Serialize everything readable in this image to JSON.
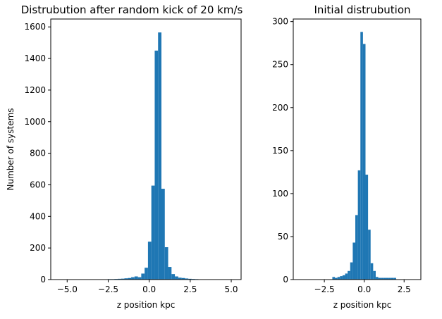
{
  "chart_data": [
    {
      "type": "bar",
      "title": "Distrubution after random kick of 20 km/s",
      "xlabel": "z position kpc",
      "ylabel": "Number of systems",
      "xlim": [
        -6.0,
        5.6
      ],
      "ylim": [
        0,
        1650
      ],
      "xticks": [
        -5.0,
        -2.5,
        0.0,
        2.5,
        5.0
      ],
      "xtick_labels": [
        "−5.0",
        "−2.5",
        "0.0",
        "2.5",
        "5.0"
      ],
      "yticks": [
        0,
        200,
        400,
        600,
        800,
        1000,
        1200,
        1400,
        1600
      ],
      "ytick_labels": [
        "0",
        "200",
        "400",
        "600",
        "800",
        "1000",
        "1200",
        "1400",
        "1600"
      ],
      "bin_start": -5.2,
      "bin_width": 0.205,
      "values": [
        2,
        1,
        1,
        1,
        1,
        2,
        2,
        1,
        1,
        2,
        2,
        2,
        2,
        3,
        3,
        4,
        5,
        6,
        8,
        10,
        15,
        20,
        15,
        38,
        75,
        240,
        595,
        1450,
        1565,
        575,
        205,
        80,
        35,
        20,
        12,
        10,
        7,
        5,
        4,
        3,
        2,
        2,
        1,
        1,
        1,
        1,
        1,
        1,
        1,
        1,
        1
      ],
      "color": "#1f77b4"
    },
    {
      "type": "bar",
      "title": "Initial distrubution",
      "xlabel": "z position kpc",
      "ylabel": "",
      "xlim": [
        -4.45,
        3.55
      ],
      "ylim": [
        0,
        303
      ],
      "xticks": [
        -2.5,
        0.0,
        2.5
      ],
      "xtick_labels": [
        "−2.5",
        "0.0",
        "2.5"
      ],
      "yticks": [
        0,
        50,
        100,
        150,
        200,
        250,
        300
      ],
      "ytick_labels": [
        "0",
        "50",
        "100",
        "150",
        "200",
        "250",
        "300"
      ],
      "bin_start": -2.0,
      "bin_width": 0.16,
      "values": [
        3,
        2,
        3,
        4,
        5,
        7,
        10,
        20,
        43,
        75,
        127,
        288,
        274,
        122,
        58,
        19,
        10,
        3,
        2,
        2,
        2,
        2,
        2,
        2,
        2
      ],
      "color": "#1f77b4"
    }
  ]
}
